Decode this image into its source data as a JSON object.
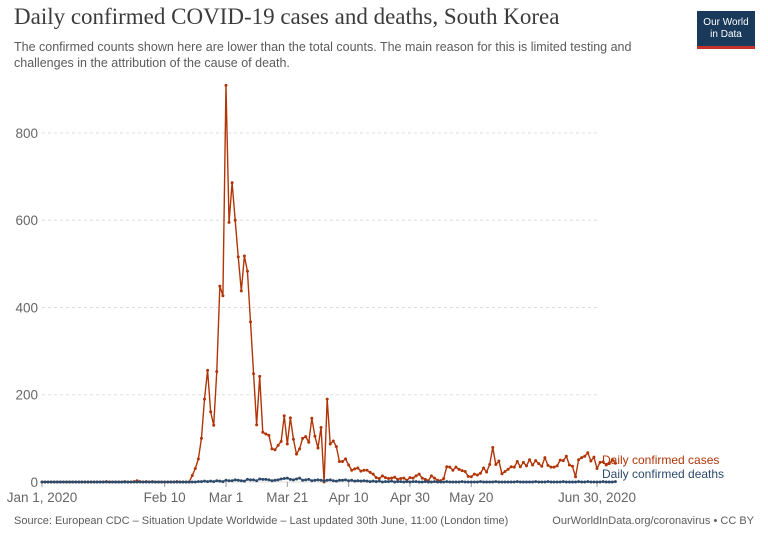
{
  "header": {
    "title": "Daily confirmed COVID-19 cases and deaths, South Korea",
    "subtitle": "The confirmed counts shown here are lower than the total counts. The main reason for this is limited testing and challenges in the attribution of the cause of death.",
    "logo_line1": "Our World",
    "logo_line2": "in Data"
  },
  "footer": {
    "source": "Source: European CDC – Situation Update Worldwide – Last updated 30th June, 11:00 (London time)",
    "credit": "OurWorldInData.org/coronavirus • CC BY"
  },
  "colors": {
    "cases": "#b13507",
    "deaths": "#2d4a6b",
    "grid": "#dddddd",
    "text": "#666666"
  },
  "chart_data": {
    "type": "line",
    "title": "Daily confirmed COVID-19 cases and deaths, South Korea",
    "xlabel": "",
    "ylabel": "",
    "x_start": "Jan 1, 2020",
    "num_days": 182,
    "ylim": [
      0,
      910
    ],
    "yticks": [
      0,
      200,
      400,
      600,
      800
    ],
    "grid": true,
    "xticks": [
      {
        "day": 0,
        "label": "Jan 1, 2020"
      },
      {
        "day": 40,
        "label": "Feb 10"
      },
      {
        "day": 60,
        "label": "Mar 1"
      },
      {
        "day": 80,
        "label": "Mar 21"
      },
      {
        "day": 100,
        "label": "Apr 10"
      },
      {
        "day": 120,
        "label": "Apr 30"
      },
      {
        "day": 140,
        "label": "May 20"
      },
      {
        "day": 181,
        "label": "Jun 30, 2020"
      }
    ],
    "legend_position": "right-end",
    "series": [
      {
        "name": "Daily confirmed cases",
        "color": "#b13507",
        "values": [
          0,
          0,
          0,
          0,
          0,
          0,
          0,
          0,
          0,
          0,
          0,
          0,
          0,
          0,
          0,
          0,
          0,
          0,
          0,
          0,
          0,
          1,
          0,
          0,
          0,
          0,
          0,
          1,
          0,
          0,
          1,
          3,
          1,
          0,
          1,
          0,
          1,
          0,
          0,
          0,
          0,
          0,
          0,
          0,
          1,
          0,
          0,
          0,
          0,
          15,
          31,
          53,
          100,
          190,
          256,
          161,
          130,
          253,
          449,
          427,
          909,
          595,
          686,
          600,
          516,
          438,
          518,
          483,
          367,
          248,
          131,
          242,
          114,
          110,
          107,
          76,
          74,
          84,
          93,
          152,
          87,
          147,
          98,
          64,
          76,
          100,
          104,
          91,
          146,
          105,
          78,
          125,
          0,
          190,
          87,
          94,
          81,
          47,
          47,
          53,
          39,
          27,
          30,
          32,
          25,
          27,
          27,
          22,
          18,
          10,
          8,
          14,
          10,
          8,
          9,
          11,
          6,
          8,
          9,
          4,
          10,
          9,
          14,
          18,
          9,
          6,
          3,
          14,
          9,
          4,
          3,
          8,
          35,
          34,
          27,
          34,
          29,
          26,
          24,
          13,
          12,
          18,
          16,
          20,
          32,
          23,
          40,
          79,
          40,
          48,
          19,
          24,
          29,
          35,
          34,
          47,
          35,
          45,
          37,
          51,
          39,
          49,
          42,
          36,
          56,
          38,
          34,
          34,
          37,
          50,
          49,
          59,
          39,
          36,
          12,
          51,
          56,
          59,
          67,
          48,
          57,
          31,
          45,
          46,
          39,
          42,
          51,
          43
        ]
      },
      {
        "name": "Daily confirmed deaths",
        "color": "#2d4a6b",
        "values": [
          0,
          0,
          0,
          0,
          0,
          0,
          0,
          0,
          0,
          0,
          0,
          0,
          0,
          0,
          0,
          0,
          0,
          0,
          0,
          0,
          0,
          0,
          0,
          0,
          0,
          0,
          0,
          0,
          0,
          0,
          0,
          0,
          0,
          0,
          0,
          0,
          0,
          0,
          0,
          0,
          0,
          0,
          0,
          0,
          0,
          0,
          0,
          0,
          0,
          0,
          0,
          1,
          1,
          2,
          1,
          2,
          1,
          3,
          2,
          1,
          4,
          3,
          3,
          5,
          4,
          3,
          2,
          6,
          5,
          5,
          3,
          7,
          6,
          6,
          5,
          3,
          4,
          5,
          7,
          8,
          9,
          6,
          5,
          7,
          9,
          4,
          5,
          6,
          3,
          4,
          5,
          4,
          3,
          4,
          5,
          3,
          2,
          4,
          4,
          5,
          3,
          4,
          2,
          3,
          2,
          3,
          2,
          1,
          2,
          1,
          2,
          0,
          1,
          1,
          2,
          0,
          1,
          1,
          0,
          1,
          0,
          1,
          1,
          0,
          0,
          1,
          0,
          0,
          1,
          0,
          0,
          0,
          1,
          0,
          0,
          0,
          0,
          1,
          0,
          0,
          0,
          0,
          0,
          1,
          0,
          0,
          0,
          0,
          1,
          0,
          0,
          0,
          0,
          0,
          0,
          1,
          0,
          0,
          0,
          0,
          0,
          1,
          0,
          0,
          0,
          1,
          0,
          0,
          0,
          0,
          1,
          0,
          0,
          0,
          0,
          1,
          0,
          0,
          1,
          0,
          0,
          0,
          0,
          1,
          0,
          0,
          0,
          1
        ]
      }
    ]
  }
}
